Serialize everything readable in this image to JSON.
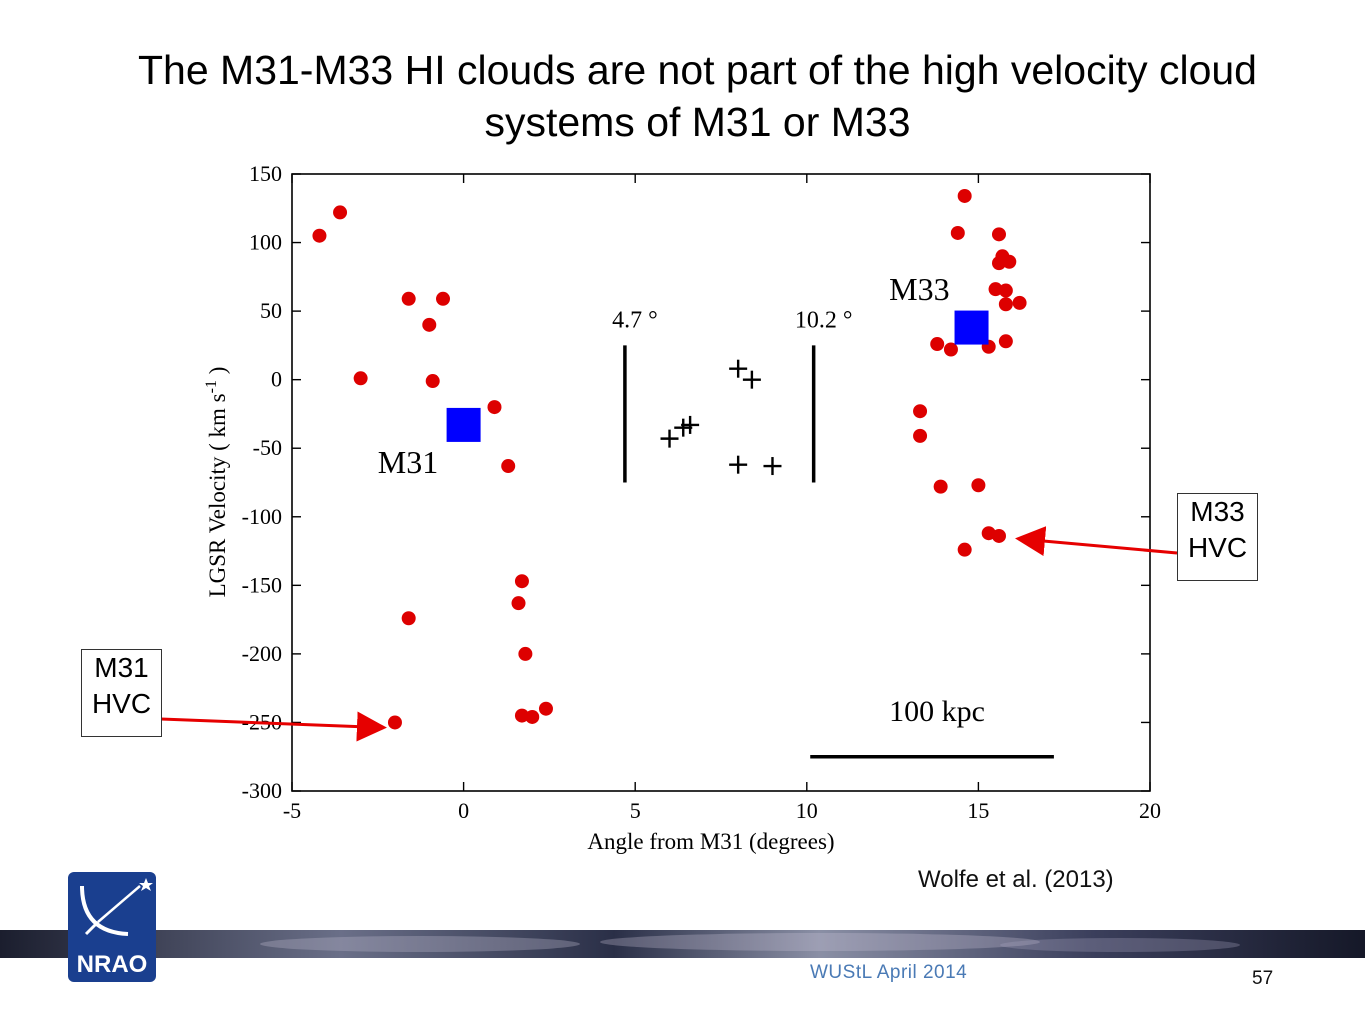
{
  "title": {
    "line1": "The M31-M33 HI clouds are not part of the high velocity cloud",
    "line2": "systems of M31 or M33"
  },
  "chart_data": {
    "type": "scatter",
    "xlabel": "Angle from M31  (degrees)",
    "ylabel": "LGSR Velocity  ( km s",
    "ylabel_sup": "-1",
    "ylabel_end": " )",
    "xlim": [
      -5,
      20
    ],
    "ylim": [
      -300,
      150
    ],
    "xticks": [
      -5,
      0,
      5,
      10,
      15,
      20
    ],
    "yticks": [
      150,
      100,
      50,
      0,
      -50,
      -100,
      -150,
      -200,
      -250,
      -300
    ],
    "grid": false,
    "series": [
      {
        "marker": "circle",
        "color": "#dd0000",
        "points": [
          [
            -4.2,
            105
          ],
          [
            -3.6,
            122
          ],
          [
            -3.0,
            1
          ],
          [
            -1.6,
            59
          ],
          [
            -1.0,
            40
          ],
          [
            -0.6,
            59
          ],
          [
            -0.9,
            -1
          ],
          [
            -1.6,
            -174
          ],
          [
            -2.0,
            -250
          ],
          [
            0.9,
            -20
          ],
          [
            1.3,
            -63
          ],
          [
            1.7,
            -147
          ],
          [
            1.6,
            -163
          ],
          [
            1.8,
            -200
          ],
          [
            1.7,
            -245
          ],
          [
            2.0,
            -246
          ],
          [
            2.4,
            -240
          ],
          [
            14.6,
            134
          ],
          [
            14.4,
            107
          ],
          [
            15.6,
            106
          ],
          [
            15.7,
            90
          ],
          [
            15.6,
            85
          ],
          [
            15.9,
            86
          ],
          [
            15.5,
            66
          ],
          [
            15.8,
            65
          ],
          [
            15.8,
            55
          ],
          [
            16.2,
            56
          ],
          [
            13.8,
            26
          ],
          [
            14.2,
            22
          ],
          [
            15.3,
            24
          ],
          [
            15.8,
            28
          ],
          [
            13.3,
            -23
          ],
          [
            13.3,
            -41
          ],
          [
            13.9,
            -78
          ],
          [
            15.0,
            -77
          ],
          [
            15.3,
            -112
          ],
          [
            15.6,
            -114
          ],
          [
            14.6,
            -124
          ]
        ]
      },
      {
        "marker": "plus",
        "color": "#000000",
        "points": [
          [
            8.0,
            8
          ],
          [
            8.4,
            0
          ],
          [
            6.0,
            -43
          ],
          [
            6.4,
            -35
          ],
          [
            6.6,
            -33
          ],
          [
            8.0,
            -62
          ],
          [
            9.0,
            -63
          ]
        ]
      },
      {
        "marker": "square",
        "color": "#0000ff",
        "points": [
          [
            0,
            -33
          ],
          [
            14.8,
            38
          ]
        ]
      }
    ],
    "annotations": {
      "m31_label": "M31",
      "m33_label": "M33",
      "line_a_label": "4.7 °",
      "line_b_label": "10.2 °",
      "scale_label": "100 kpc"
    },
    "vlines": [
      {
        "x": 4.7,
        "y_from": -75,
        "y_to": 25
      },
      {
        "x": 10.2,
        "y_from": -75,
        "y_to": 25
      }
    ],
    "scale_bar": {
      "x_from": 10.1,
      "x_to": 17.2,
      "y": -275
    }
  },
  "callouts": {
    "m31": {
      "line1": "M31",
      "line2": "HVC",
      "target": [
        -2.0,
        -250
      ]
    },
    "m33": {
      "line1": "M33",
      "line2": "HVC",
      "target": [
        15.6,
        -114
      ]
    }
  },
  "citation": "Wolfe et al. (2013)",
  "footer": {
    "event": "WUStL April 2014",
    "page_number": "57",
    "logo_text": "NRAO"
  },
  "colors": {
    "hvc_points": "#dd0000",
    "galaxy_markers": "#0000ff",
    "callout_arrow": "#e60000",
    "footer_text": "#4a7ab5",
    "logo_blue": "#1a3f8f"
  }
}
